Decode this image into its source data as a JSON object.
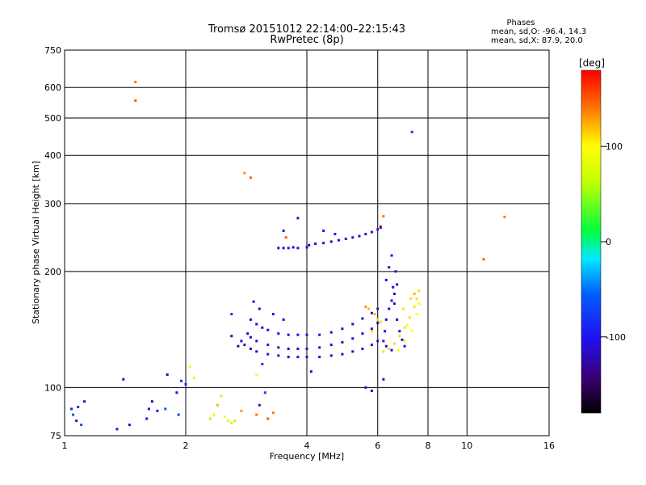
{
  "chart_data": {
    "type": "scatter",
    "title": "Tromsø 20151012 22:14:00–22:15:43",
    "subtitle": "RwPretec (8p)",
    "xlabel": "Frequency [MHz]",
    "ylabel": "Stationary phase Virtual Height [km]",
    "x_scale": "log",
    "y_scale": "log",
    "xlim": [
      1,
      16
    ],
    "ylim": [
      75,
      750
    ],
    "x_ticks": [
      1,
      2,
      4,
      6,
      8,
      10,
      16
    ],
    "y_ticks": [
      75,
      100,
      200,
      300,
      400,
      500,
      600,
      750
    ],
    "grid": true,
    "phases_box": {
      "title": "Phases",
      "line1": "mean, sd,O: -96.4, 14.3",
      "line2": "mean, sd,X:  87.9, 20.0"
    },
    "colorbar": {
      "label": "[deg]",
      "range": [
        -180,
        180
      ],
      "ticks": [
        {
          "value": 100,
          "label": "100"
        },
        {
          "value": 0,
          "label": "0"
        },
        {
          "value": -100,
          "label": "-100"
        }
      ]
    },
    "series": [
      {
        "points": [
          [
            1.04,
            88,
            -90
          ],
          [
            1.05,
            85,
            -60
          ],
          [
            1.07,
            82,
            -100
          ],
          [
            1.08,
            89,
            -80
          ],
          [
            1.12,
            92,
            -110
          ],
          [
            1.1,
            80,
            -70
          ],
          [
            1.35,
            78,
            -100
          ],
          [
            1.45,
            80,
            -110
          ],
          [
            1.4,
            105,
            -110
          ],
          [
            1.6,
            83,
            -100
          ],
          [
            1.62,
            88,
            -110
          ],
          [
            1.65,
            92,
            -120
          ],
          [
            1.7,
            87,
            -90
          ],
          [
            1.8,
            108,
            -110
          ],
          [
            1.78,
            88,
            -60
          ],
          [
            1.9,
            97,
            -100
          ],
          [
            1.95,
            104,
            -80
          ],
          [
            1.92,
            85,
            -70
          ],
          [
            2.05,
            113,
            80
          ],
          [
            2.1,
            106,
            80
          ],
          [
            2.0,
            102,
            -90
          ],
          [
            2.4,
            90,
            120
          ],
          [
            2.45,
            95,
            110
          ],
          [
            2.5,
            84,
            90
          ],
          [
            2.55,
            82,
            70
          ],
          [
            2.6,
            81,
            60
          ],
          [
            2.65,
            82,
            60
          ],
          [
            2.3,
            83,
            60
          ],
          [
            2.35,
            85,
            80
          ],
          [
            2.75,
            87,
            130
          ],
          [
            3.0,
            85,
            140
          ],
          [
            3.2,
            83,
            150
          ],
          [
            3.3,
            86,
            140
          ],
          [
            3.05,
            90,
            -110
          ],
          [
            3.15,
            97,
            -80
          ],
          [
            1.5,
            620,
            140
          ],
          [
            1.5,
            555,
            150
          ],
          [
            2.8,
            360,
            130
          ],
          [
            2.9,
            350,
            150
          ],
          [
            3.8,
            275,
            -110
          ],
          [
            4.4,
            255,
            -100
          ],
          [
            4.7,
            250,
            -100
          ],
          [
            6.1,
            262,
            150
          ],
          [
            6.2,
            278,
            140
          ],
          [
            7.3,
            460,
            -80
          ],
          [
            11.0,
            215,
            150
          ],
          [
            12.4,
            277,
            140
          ],
          [
            3.5,
            255,
            -90
          ],
          [
            3.55,
            245,
            150
          ],
          [
            3.4,
            230,
            -110
          ],
          [
            3.5,
            230,
            -110
          ],
          [
            3.6,
            230,
            -110
          ],
          [
            3.7,
            231,
            -110
          ],
          [
            3.8,
            230,
            -110
          ],
          [
            4.0,
            231,
            -110
          ],
          [
            4.05,
            234,
            -110
          ],
          [
            4.2,
            236,
            -110
          ],
          [
            4.4,
            237,
            -110
          ],
          [
            4.6,
            239,
            -110
          ],
          [
            4.8,
            241,
            -110
          ],
          [
            5.0,
            243,
            -110
          ],
          [
            5.2,
            245,
            -110
          ],
          [
            5.4,
            247,
            -110
          ],
          [
            5.6,
            250,
            -110
          ],
          [
            5.8,
            253,
            -110
          ],
          [
            6.0,
            257,
            -110
          ],
          [
            6.1,
            260,
            -110
          ],
          [
            2.9,
            150,
            -110
          ],
          [
            3.0,
            146,
            -110
          ],
          [
            3.1,
            143,
            -110
          ],
          [
            3.2,
            141,
            -110
          ],
          [
            3.4,
            138,
            -110
          ],
          [
            3.6,
            137,
            -110
          ],
          [
            3.8,
            137,
            -110
          ],
          [
            4.0,
            137,
            -110
          ],
          [
            4.3,
            137,
            -110
          ],
          [
            4.6,
            139,
            -110
          ],
          [
            4.9,
            142,
            -110
          ],
          [
            5.2,
            146,
            -110
          ],
          [
            5.5,
            151,
            -110
          ],
          [
            5.8,
            156,
            -110
          ],
          [
            6.0,
            160,
            -110
          ],
          [
            2.85,
            138,
            -120
          ],
          [
            2.9,
            135,
            -110
          ],
          [
            3.0,
            132,
            -110
          ],
          [
            3.2,
            129,
            -110
          ],
          [
            3.4,
            127,
            -110
          ],
          [
            3.6,
            126,
            -110
          ],
          [
            3.8,
            126,
            -110
          ],
          [
            4.0,
            126,
            -110
          ],
          [
            4.3,
            127,
            -110
          ],
          [
            4.6,
            129,
            -110
          ],
          [
            4.9,
            131,
            -110
          ],
          [
            5.2,
            134,
            -110
          ],
          [
            5.5,
            138,
            -110
          ],
          [
            5.8,
            142,
            -110
          ],
          [
            6.0,
            147,
            -110
          ],
          [
            2.75,
            132,
            -120
          ],
          [
            2.8,
            129,
            -120
          ],
          [
            2.9,
            126,
            -110
          ],
          [
            3.0,
            124,
            -110
          ],
          [
            3.2,
            122,
            -110
          ],
          [
            3.4,
            121,
            -110
          ],
          [
            3.6,
            120,
            -110
          ],
          [
            3.8,
            120,
            -110
          ],
          [
            4.0,
            120,
            -110
          ],
          [
            4.3,
            120,
            -110
          ],
          [
            4.6,
            121,
            -110
          ],
          [
            4.9,
            122,
            -110
          ],
          [
            5.2,
            124,
            -110
          ],
          [
            5.5,
            126,
            -110
          ],
          [
            5.8,
            129,
            -110
          ],
          [
            6.0,
            132,
            -110
          ],
          [
            2.6,
            136,
            -120
          ],
          [
            2.7,
            128,
            -130
          ],
          [
            2.95,
            167,
            -110
          ],
          [
            3.05,
            160,
            -110
          ],
          [
            3.3,
            155,
            -110
          ],
          [
            3.5,
            150,
            -110
          ],
          [
            5.6,
            162,
            130
          ],
          [
            5.7,
            160,
            120
          ],
          [
            5.9,
            155,
            120
          ],
          [
            6.0,
            150,
            110
          ],
          [
            6.1,
            148,
            110
          ],
          [
            5.8,
            140,
            110
          ],
          [
            6.3,
            190,
            -110
          ],
          [
            6.4,
            205,
            -110
          ],
          [
            6.5,
            220,
            -110
          ],
          [
            6.55,
            182,
            -110
          ],
          [
            6.6,
            175,
            -110
          ],
          [
            6.5,
            168,
            -110
          ],
          [
            6.4,
            160,
            -110
          ],
          [
            6.3,
            150,
            -110
          ],
          [
            6.25,
            140,
            -110
          ],
          [
            6.2,
            132,
            -110
          ],
          [
            6.3,
            128,
            -110
          ],
          [
            6.5,
            125,
            -110
          ],
          [
            6.65,
            200,
            -110
          ],
          [
            6.7,
            185,
            -110
          ],
          [
            6.6,
            165,
            -110
          ],
          [
            6.7,
            150,
            -110
          ],
          [
            6.8,
            140,
            -110
          ],
          [
            6.9,
            133,
            -110
          ],
          [
            7.0,
            128,
            -110
          ],
          [
            6.2,
            124,
            110
          ],
          [
            6.4,
            126,
            110
          ],
          [
            6.6,
            130,
            110
          ],
          [
            6.8,
            136,
            110
          ],
          [
            7.0,
            143,
            110
          ],
          [
            7.2,
            152,
            110
          ],
          [
            7.4,
            162,
            110
          ],
          [
            7.5,
            170,
            110
          ],
          [
            7.6,
            178,
            110
          ],
          [
            7.3,
            140,
            100
          ],
          [
            7.5,
            155,
            100
          ],
          [
            7.6,
            165,
            100
          ],
          [
            7.0,
            132,
            100
          ],
          [
            6.75,
            125,
            100
          ],
          [
            7.25,
            170,
            110
          ],
          [
            7.4,
            175,
            120
          ],
          [
            6.95,
            160,
            110
          ],
          [
            7.1,
            145,
            100
          ],
          [
            2.6,
            155,
            -80
          ],
          [
            3.1,
            115,
            -80
          ],
          [
            3.0,
            108,
            100
          ],
          [
            4.1,
            110,
            -110
          ],
          [
            5.6,
            100,
            -110
          ],
          [
            5.8,
            98,
            -120
          ],
          [
            6.2,
            105,
            -110
          ]
        ]
      }
    ]
  }
}
